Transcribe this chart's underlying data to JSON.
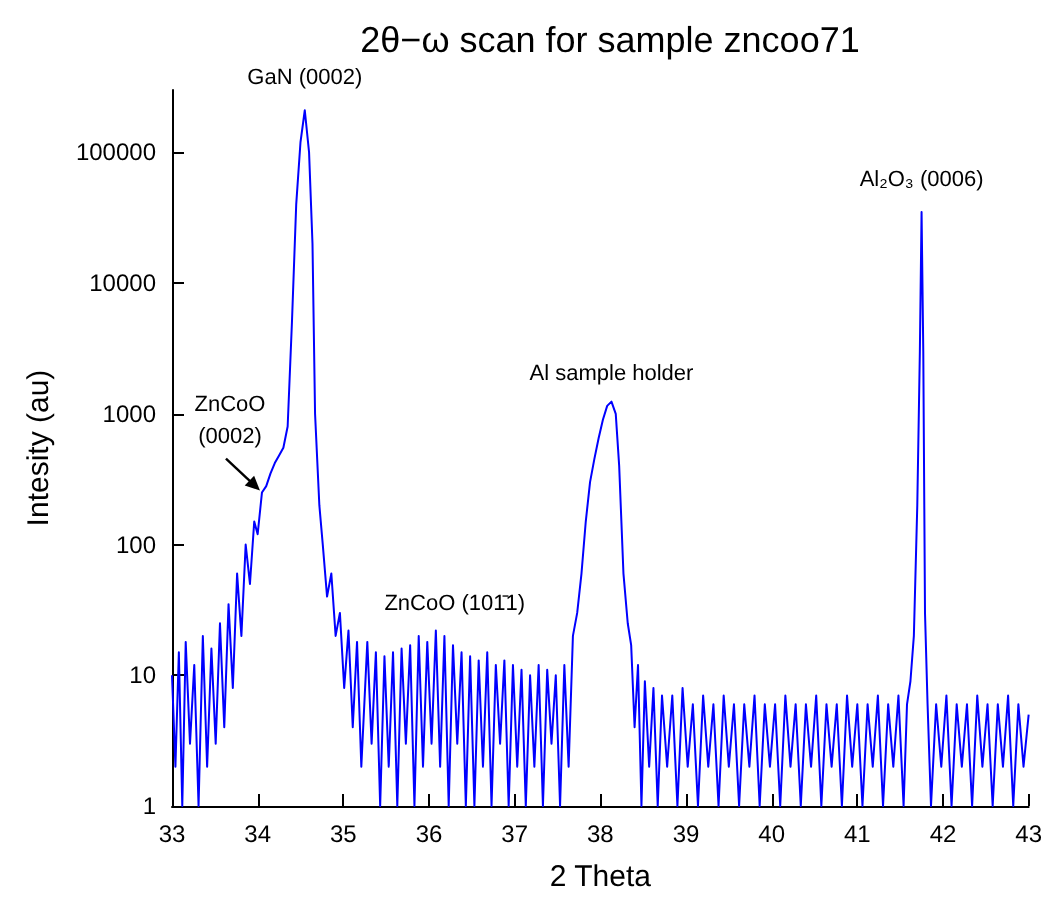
{
  "chart_data": {
    "type": "line",
    "title": "2θ−ω scan for sample zncoo71",
    "xlabel": "2 Theta",
    "ylabel": "Intesity (au)",
    "log": "y",
    "marker": "none",
    "line_style": "solid",
    "xlim": [
      33,
      43
    ],
    "xticks": [
      33,
      34,
      35,
      36,
      37,
      38,
      39,
      40,
      41,
      42,
      43
    ],
    "ylim": [
      1,
      300000
    ],
    "yticks": [
      1,
      10,
      100,
      1000,
      10000,
      100000
    ],
    "annotations": [
      {
        "text": "GaN (0002)",
        "x": 34.55,
        "y": 210000
      },
      {
        "text": "ZnCoO\n(0002)",
        "x": 34.05,
        "y": 250
      },
      {
        "text": "ZnCoO (101̄1)",
        "x": 36.3,
        "y": 20
      },
      {
        "text": "Al sample holder",
        "x": 38.13,
        "y": 1240
      },
      {
        "text": "Al₂O₃ (0006)",
        "x": 41.75,
        "y": 35000
      }
    ],
    "series": [
      {
        "color": "#0000ff",
        "x": [
          33.0,
          33.04,
          33.08,
          33.12,
          33.16,
          33.21,
          33.26,
          33.31,
          33.36,
          33.41,
          33.46,
          33.51,
          33.56,
          33.61,
          33.66,
          33.71,
          33.76,
          33.81,
          33.86,
          33.91,
          33.96,
          34.0,
          34.05,
          34.1,
          34.15,
          34.2,
          34.25,
          34.3,
          34.35,
          34.4,
          34.45,
          34.5,
          34.55,
          34.6,
          34.64,
          34.67,
          34.72,
          34.76,
          34.81,
          34.86,
          34.91,
          34.96,
          35.01,
          35.06,
          35.11,
          35.16,
          35.21,
          35.28,
          35.33,
          35.38,
          35.43,
          35.48,
          35.53,
          35.58,
          35.63,
          35.68,
          35.73,
          35.78,
          35.83,
          35.88,
          35.93,
          35.98,
          36.03,
          36.08,
          36.13,
          36.18,
          36.23,
          36.28,
          36.33,
          36.38,
          36.43,
          36.48,
          36.53,
          36.58,
          36.63,
          36.68,
          36.73,
          36.78,
          36.83,
          36.88,
          36.93,
          36.98,
          37.03,
          37.08,
          37.13,
          37.18,
          37.23,
          37.28,
          37.33,
          37.38,
          37.43,
          37.48,
          37.53,
          37.58,
          37.63,
          37.68,
          37.73,
          37.78,
          37.83,
          37.88,
          37.93,
          37.98,
          38.03,
          38.08,
          38.13,
          38.18,
          38.22,
          38.27,
          38.32,
          38.36,
          38.4,
          38.44,
          38.48,
          38.52,
          38.57,
          38.62,
          38.67,
          38.72,
          38.78,
          38.84,
          38.9,
          38.96,
          39.02,
          39.08,
          39.14,
          39.2,
          39.26,
          39.32,
          39.38,
          39.44,
          39.5,
          39.56,
          39.62,
          39.68,
          39.74,
          39.8,
          39.86,
          39.92,
          39.98,
          40.04,
          40.1,
          40.16,
          40.22,
          40.28,
          40.34,
          40.4,
          40.46,
          40.52,
          40.58,
          40.64,
          40.7,
          40.76,
          40.82,
          40.88,
          40.94,
          41.0,
          41.06,
          41.12,
          41.18,
          41.24,
          41.3,
          41.36,
          41.42,
          41.48,
          41.54,
          41.58,
          41.62,
          41.66,
          41.7,
          41.73,
          41.75,
          41.77,
          41.79,
          41.82,
          41.86,
          41.92,
          41.98,
          42.04,
          42.1,
          42.16,
          42.22,
          42.28,
          42.34,
          42.4,
          42.46,
          42.52,
          42.58,
          42.64,
          42.7,
          42.76,
          42.82,
          42.88,
          42.94,
          43.0
        ],
        "values": [
          10,
          2,
          15,
          1,
          18,
          3,
          12,
          1,
          20,
          2,
          16,
          3,
          25,
          4,
          35,
          8,
          60,
          20,
          100,
          50,
          150,
          120,
          250,
          280,
          350,
          420,
          480,
          550,
          800,
          5000,
          40000,
          120000,
          210000,
          100000,
          20000,
          1000,
          200,
          100,
          40,
          60,
          20,
          30,
          8,
          22,
          4,
          18,
          2,
          18,
          3,
          15,
          1,
          14,
          2,
          15,
          1,
          16,
          3,
          17,
          1,
          20,
          2,
          18,
          3,
          22,
          2,
          20,
          1,
          17,
          3,
          15,
          1,
          14,
          1,
          13,
          2,
          15,
          1,
          12,
          3,
          13,
          1,
          12,
          2,
          11,
          1,
          10,
          2,
          12,
          1,
          11,
          3,
          10,
          1,
          12,
          2,
          20,
          30,
          60,
          150,
          300,
          450,
          650,
          900,
          1150,
          1240,
          1000,
          400,
          60,
          25,
          17,
          4,
          12,
          1,
          9,
          2,
          8,
          1,
          7,
          2,
          7,
          1,
          8,
          2,
          6,
          1,
          7,
          2,
          6,
          1,
          7,
          2,
          6,
          1,
          6,
          2,
          7,
          1,
          6,
          2,
          6,
          1,
          7,
          2,
          6,
          1,
          6,
          2,
          7,
          1,
          6,
          2,
          6,
          1,
          7,
          2,
          6,
          1,
          6,
          2,
          7,
          1,
          6,
          2,
          7,
          1,
          6,
          9,
          20,
          200,
          3000,
          35000,
          3000,
          30,
          6,
          1,
          6,
          2,
          7,
          1,
          6,
          2,
          6,
          1,
          7,
          2,
          6,
          1,
          6,
          2,
          7,
          1,
          6,
          2,
          5
        ]
      }
    ]
  }
}
